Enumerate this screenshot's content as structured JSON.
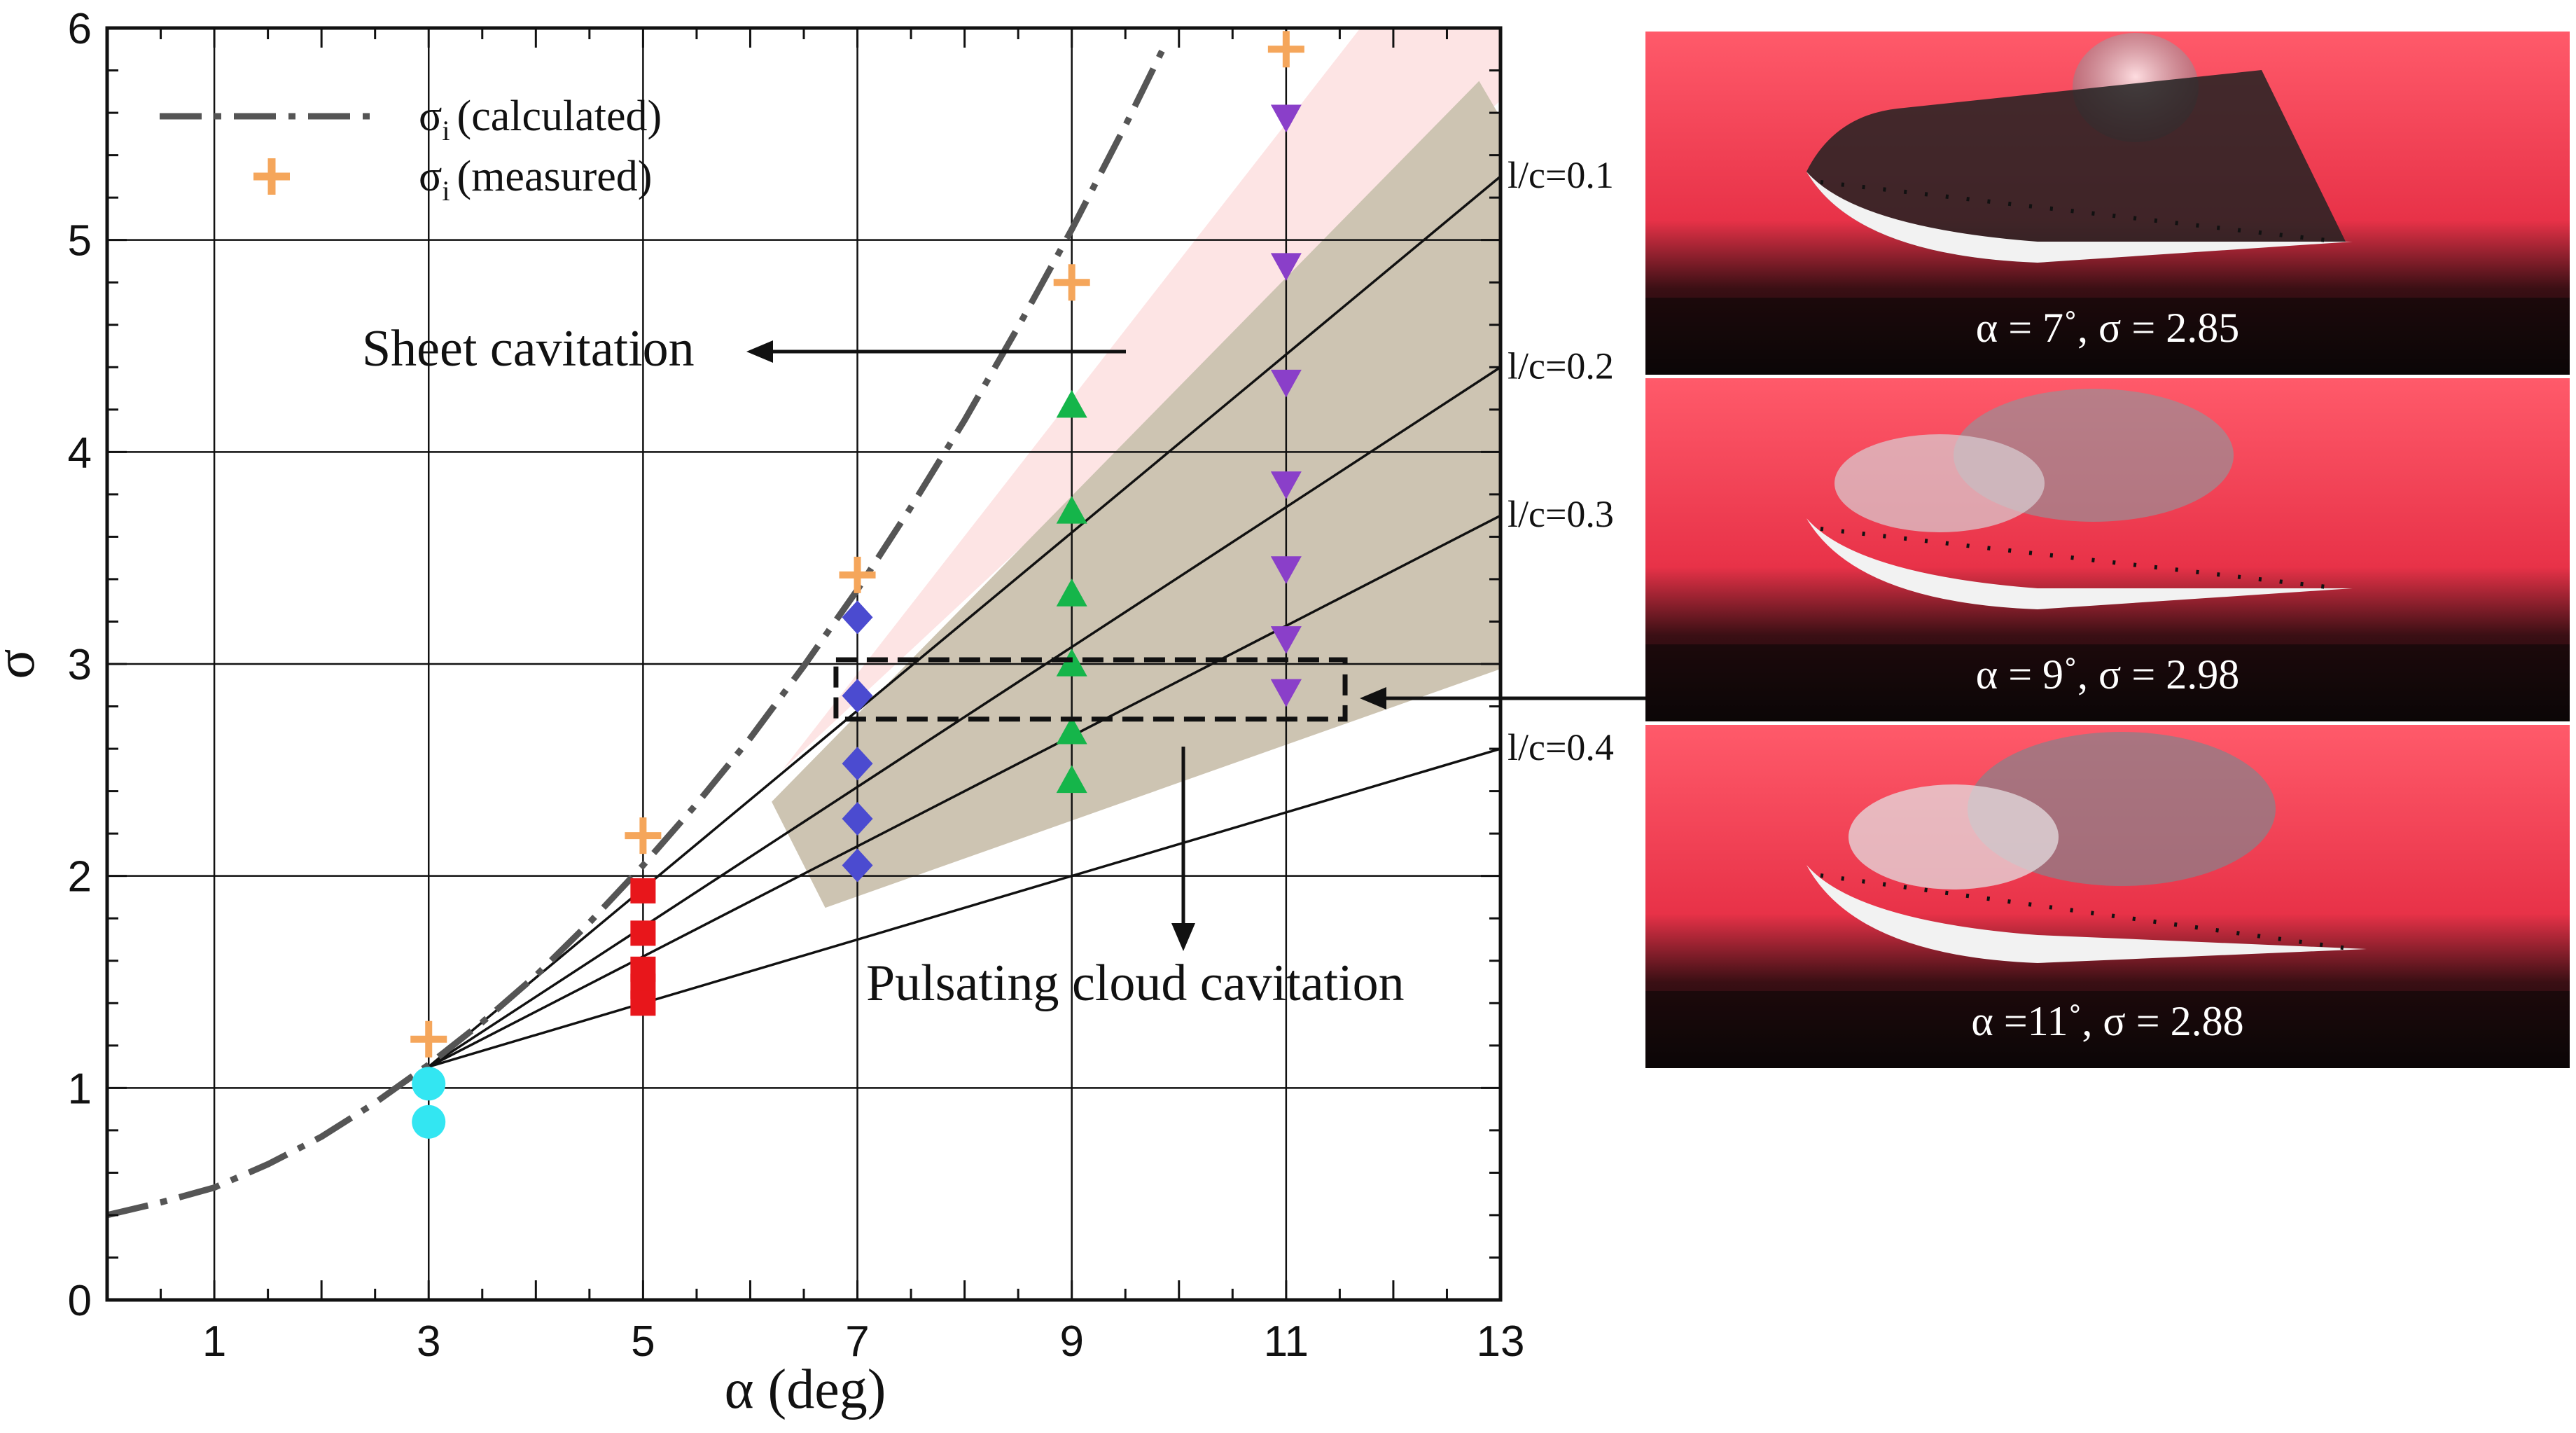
{
  "chart_data": {
    "type": "scatter",
    "xlabel": "α (deg)",
    "ylabel": "σ",
    "xlim": [
      0,
      13
    ],
    "ylim": [
      0,
      6
    ],
    "x_ticks": [
      1,
      3,
      5,
      7,
      9,
      11,
      13
    ],
    "y_ticks": [
      0,
      1,
      2,
      3,
      4,
      5,
      6
    ],
    "grid": true,
    "legend": {
      "placement": "top-left",
      "entries": [
        {
          "style": "dash-dot",
          "label": "σ",
          "subscript": "i",
          "suffix": "(calculated)",
          "color": "#555555"
        },
        {
          "style": "plus",
          "label": "σ",
          "subscript": "i",
          "suffix": "(measured)",
          "color": "#f5a65b"
        }
      ]
    },
    "calculated_curve": {
      "x": [
        0,
        0.5,
        1,
        1.5,
        2,
        2.5,
        3,
        3.5,
        4,
        4.5,
        5,
        5.5,
        6,
        6.5,
        7,
        7.5,
        8,
        8.5,
        9,
        9.5,
        9.85
      ],
      "y": [
        0.4,
        0.46,
        0.53,
        0.64,
        0.77,
        0.93,
        1.11,
        1.31,
        1.53,
        1.78,
        2.05,
        2.34,
        2.65,
        2.99,
        3.35,
        3.74,
        4.15,
        4.59,
        5.05,
        5.54,
        5.9
      ],
      "color": "#555555"
    },
    "measured": {
      "x": [
        3,
        5,
        7,
        9,
        11
      ],
      "y": [
        1.23,
        2.19,
        3.42,
        4.8,
        5.9
      ],
      "color": "#f5a65b"
    },
    "lc_lines": [
      {
        "label": "l/c=0.1",
        "x": [
          3,
          13
        ],
        "y": [
          1.1,
          5.3
        ]
      },
      {
        "label": "l/c=0.2",
        "x": [
          3,
          13
        ],
        "y": [
          1.1,
          4.4
        ]
      },
      {
        "label": "l/c=0.3",
        "x": [
          3,
          13
        ],
        "y": [
          1.1,
          3.7
        ]
      },
      {
        "label": "l/c=0.4",
        "x": [
          3,
          13
        ],
        "y": [
          1.1,
          2.6
        ]
      }
    ],
    "regions": [
      {
        "name": "sheet",
        "color": "#fde4e4",
        "polygon": [
          [
            6.3,
            2.5
          ],
          [
            12.0,
            6.2
          ],
          [
            13.4,
            6.2
          ],
          [
            13.3,
            5.8
          ]
        ]
      },
      {
        "name": "pulsating",
        "color": "#cdc4b2",
        "polygon": [
          [
            6.2,
            2.35
          ],
          [
            12.8,
            5.75
          ],
          [
            14.25,
            4.5
          ],
          [
            14.25,
            3.2
          ],
          [
            6.7,
            1.85
          ]
        ]
      }
    ],
    "series": [
      {
        "x": [
          3,
          3
        ],
        "y": [
          1.02,
          0.84
        ],
        "marker": "circle",
        "color": "#33e6f2"
      },
      {
        "x": [
          5,
          5,
          5,
          5,
          5
        ],
        "y": [
          1.93,
          1.73,
          1.56,
          1.48,
          1.4
        ],
        "marker": "square",
        "color": "#e8161b"
      },
      {
        "x": [
          7,
          7,
          7,
          7,
          7
        ],
        "y": [
          3.22,
          2.85,
          2.53,
          2.27,
          2.05
        ],
        "marker": "diamond",
        "color": "#4b4bd0"
      },
      {
        "x": [
          9,
          9,
          9,
          9,
          9,
          9
        ],
        "y": [
          4.22,
          3.72,
          3.33,
          3.0,
          2.68,
          2.45
        ],
        "marker": "triangle-up",
        "color": "#15b54a"
      },
      {
        "x": [
          11,
          11,
          11,
          11,
          11,
          11,
          11,
          11
        ],
        "y": [
          5.58,
          4.88,
          4.33,
          3.85,
          3.45,
          3.12,
          2.87,
          2.87
        ],
        "marker": "triangle-down",
        "color": "#8a3fc9"
      }
    ],
    "highlight_box": {
      "x": [
        6.8,
        11.55
      ],
      "y": [
        2.74,
        3.02
      ]
    },
    "annotations": {
      "sheet": "Sheet cavitation",
      "pulsating": "Pulsating cloud cavitation"
    }
  },
  "photos": [
    {
      "caption": "α = 7˚, σ = 2.85"
    },
    {
      "caption": "α = 9˚, σ = 2.98"
    },
    {
      "caption": "α =11˚, σ = 2.88"
    }
  ]
}
